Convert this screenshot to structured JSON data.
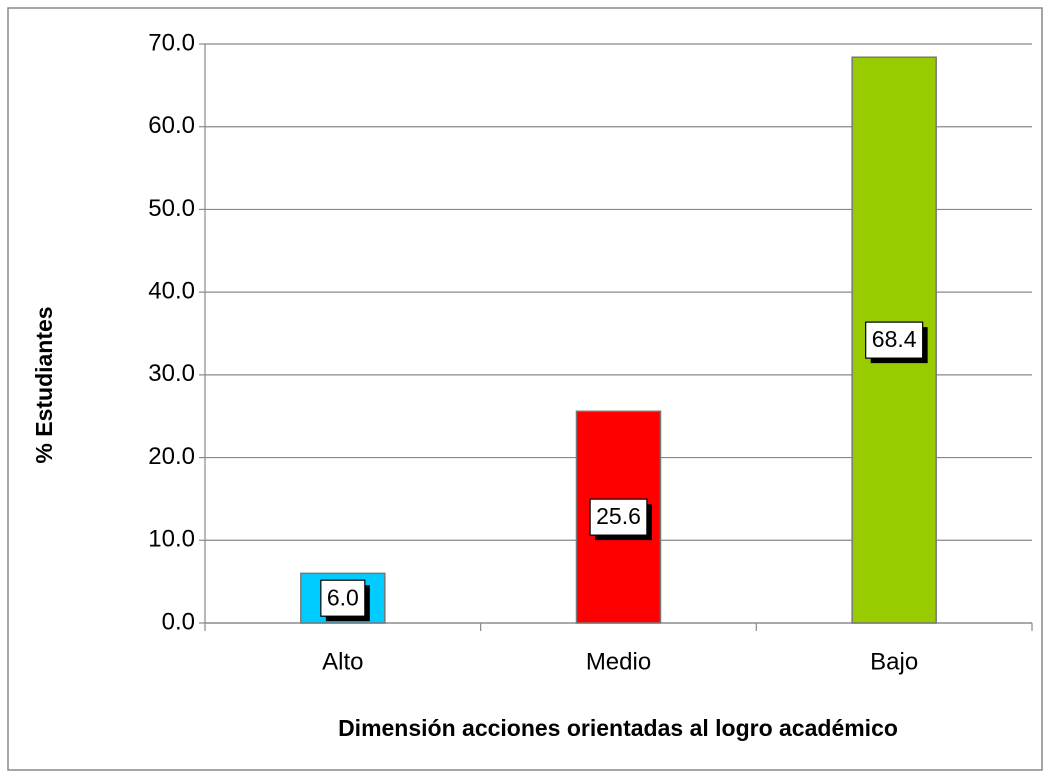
{
  "chart_data": {
    "type": "bar",
    "x_label": "Dimensión acciones orientadas al logro académico",
    "y_label": "% Estudiantes",
    "categories": [
      "Alto",
      "Medio",
      "Bajo"
    ],
    "values": [
      6.0,
      25.6,
      68.4
    ],
    "value_labels": [
      "6.0",
      "25.6",
      "68.4"
    ],
    "colors": [
      "#00ccff",
      "#ff0000",
      "#99cc00"
    ],
    "ylim": [
      0,
      70
    ],
    "yticks": [
      {
        "value": 0,
        "label": "0.0"
      },
      {
        "value": 10,
        "label": "10.0"
      },
      {
        "value": 20,
        "label": "20.0"
      },
      {
        "value": 30,
        "label": "30.0"
      },
      {
        "value": 40,
        "label": "40.0"
      },
      {
        "value": 50,
        "label": "50.0"
      },
      {
        "value": 60,
        "label": "60.0"
      },
      {
        "value": 70,
        "label": "70.0"
      }
    ],
    "grid": true
  }
}
